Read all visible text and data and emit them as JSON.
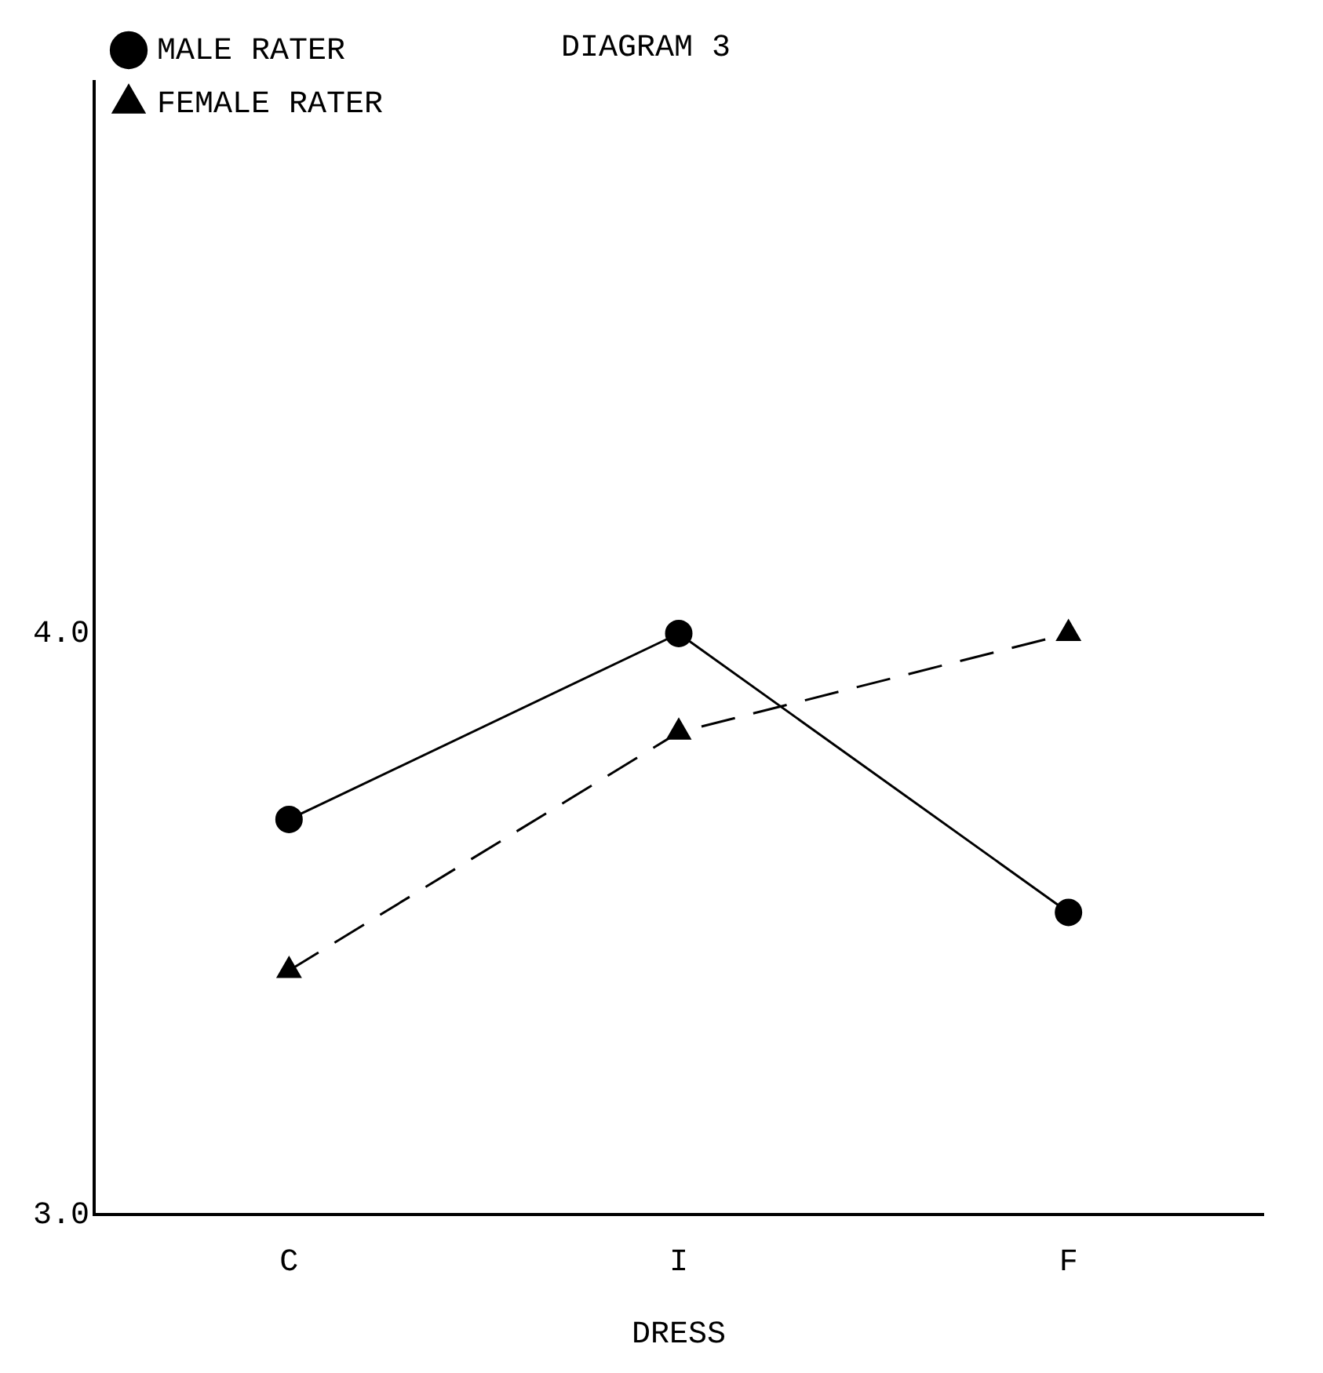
{
  "chart_data": {
    "type": "line",
    "title": "DIAGRAM 3",
    "xlabel": "DRESS",
    "categories": [
      "C",
      "I",
      "F"
    ],
    "series": [
      {
        "name": "MALE RATER",
        "color": "#000000",
        "values": [
          3.68,
          4.0,
          3.52
        ],
        "marker": "circle",
        "line_style": "solid"
      },
      {
        "name": "FEMALE RATER",
        "color": "#000000",
        "values": [
          3.42,
          3.83,
          4.0
        ],
        "marker": "triangle",
        "line_style": "dashed"
      }
    ],
    "ylim": [
      3.0,
      4.95
    ],
    "yticks": [
      {
        "value": 3.0,
        "label": "3.0"
      },
      {
        "value": 4.0,
        "label": "4.0"
      }
    ],
    "grid": false,
    "legend": "top left"
  }
}
